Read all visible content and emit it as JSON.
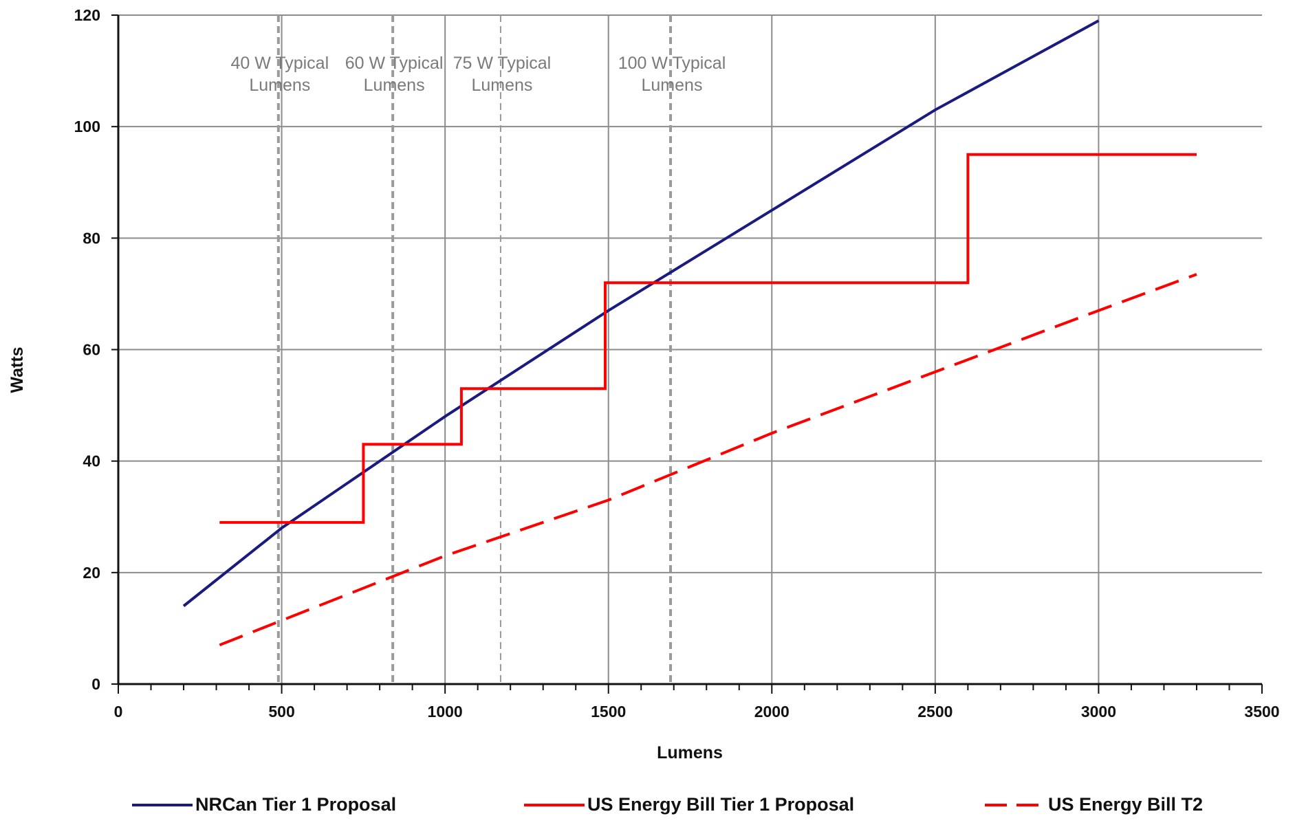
{
  "chart_data": {
    "type": "line",
    "title": "",
    "xlabel": "Lumens",
    "ylabel": "Watts",
    "xlim": [
      0,
      3500
    ],
    "ylim": [
      0,
      120
    ],
    "x_ticks": [
      0,
      500,
      1000,
      1500,
      2000,
      2500,
      3000,
      3500
    ],
    "y_ticks": [
      0,
      20,
      40,
      60,
      80,
      100,
      120
    ],
    "grid": true,
    "legend_position": "bottom",
    "reference_lines": [
      {
        "label_line1": "40 W Typical",
        "label_line2": "Lumens",
        "x": 490
      },
      {
        "label_line1": "60 W Typical",
        "label_line2": "Lumens",
        "x": 840
      },
      {
        "label_line1": "75 W Typical",
        "label_line2": "Lumens",
        "x": 1170
      },
      {
        "label_line1": "100 W Typical",
        "label_line2": "Lumens",
        "x": 1690
      }
    ],
    "series": [
      {
        "name": "NRCan Tier 1 Proposal",
        "style": "solid",
        "color": "#1a1a80",
        "points": [
          [
            200,
            14
          ],
          [
            500,
            28
          ],
          [
            1000,
            48
          ],
          [
            1500,
            67
          ],
          [
            2000,
            85
          ],
          [
            2500,
            103
          ],
          [
            3000,
            119
          ]
        ]
      },
      {
        "name": "US Energy Bill Tier 1 Proposal",
        "style": "solid",
        "color": "#ff0000",
        "points": [
          [
            310,
            29
          ],
          [
            750,
            29
          ],
          [
            750,
            43
          ],
          [
            1050,
            43
          ],
          [
            1050,
            53
          ],
          [
            1490,
            53
          ],
          [
            1490,
            72
          ],
          [
            2600,
            72
          ],
          [
            2600,
            95
          ],
          [
            3300,
            95
          ]
        ]
      },
      {
        "name": "US Energy Bill T2",
        "style": "dashed",
        "color": "#ff0000",
        "points": [
          [
            310,
            7
          ],
          [
            1000,
            23
          ],
          [
            1500,
            33
          ],
          [
            2000,
            45
          ],
          [
            2500,
            56
          ],
          [
            3000,
            67
          ],
          [
            3300,
            73.5
          ]
        ]
      }
    ]
  }
}
